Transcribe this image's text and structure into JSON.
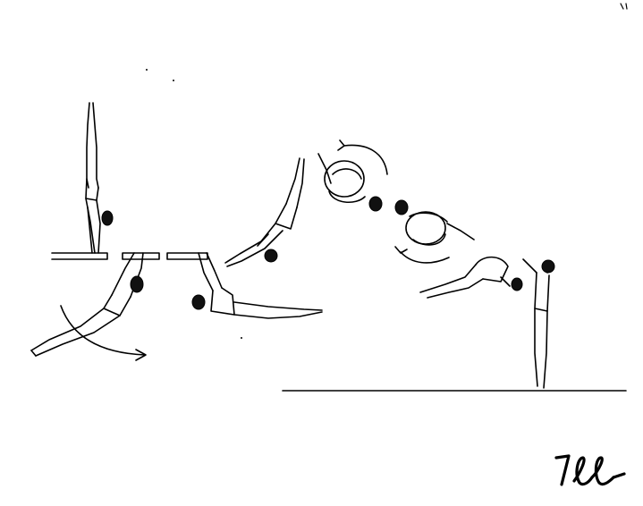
{
  "diagram": {
    "signature": "7ee"
  }
}
